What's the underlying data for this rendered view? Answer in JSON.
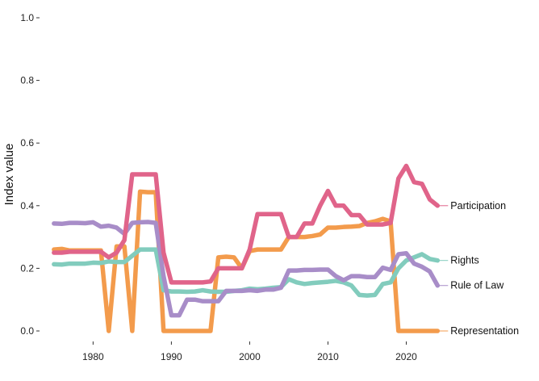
{
  "chart_data": {
    "type": "line",
    "title": "",
    "xlabel": "",
    "ylabel": "Index value",
    "xlim": [
      1974.5,
      2025
    ],
    "ylim": [
      0,
      1
    ],
    "yticks": [
      "0.0",
      "0.2",
      "0.4",
      "0.6",
      "0.8",
      "1.0"
    ],
    "xticks": [
      "1980",
      "1990",
      "2000",
      "2010",
      "2020"
    ],
    "grid": false,
    "legend": "direct-labels-right",
    "x": [
      1975,
      1976,
      1977,
      1978,
      1979,
      1980,
      1981,
      1982,
      1983,
      1984,
      1985,
      1986,
      1987,
      1988,
      1989,
      1990,
      1991,
      1992,
      1993,
      1994,
      1995,
      1996,
      1997,
      1998,
      1999,
      2000,
      2001,
      2002,
      2003,
      2004,
      2005,
      2006,
      2007,
      2008,
      2009,
      2010,
      2011,
      2012,
      2013,
      2014,
      2015,
      2016,
      2017,
      2018,
      2019,
      2020,
      2021,
      2022,
      2023,
      2024
    ],
    "series": [
      {
        "name": "Representation",
        "color": "#F39B4C",
        "values": [
          0.26,
          0.262,
          0.257,
          0.257,
          0.257,
          0.257,
          0.257,
          0.0,
          0.27,
          0.27,
          0.0,
          0.445,
          0.443,
          0.443,
          0.0,
          0.0,
          0.0,
          0.0,
          0.0,
          0.0,
          0.0,
          0.235,
          0.237,
          0.235,
          0.2,
          0.255,
          0.26,
          0.26,
          0.26,
          0.26,
          0.3,
          0.3,
          0.3,
          0.303,
          0.308,
          0.33,
          0.33,
          0.332,
          0.333,
          0.335,
          0.345,
          0.35,
          0.358,
          0.35,
          0.0,
          0.0,
          0.0,
          0.0,
          0.0,
          0.0
        ]
      },
      {
        "name": "Participation",
        "color": "#E0648A",
        "values": [
          0.25,
          0.25,
          0.253,
          0.253,
          0.253,
          0.253,
          0.253,
          0.235,
          0.25,
          0.29,
          0.5,
          0.5,
          0.5,
          0.5,
          0.25,
          0.155,
          0.155,
          0.155,
          0.155,
          0.155,
          0.158,
          0.2,
          0.2,
          0.2,
          0.2,
          0.26,
          0.373,
          0.373,
          0.373,
          0.373,
          0.3,
          0.3,
          0.343,
          0.343,
          0.4,
          0.447,
          0.4,
          0.4,
          0.37,
          0.37,
          0.34,
          0.34,
          0.34,
          0.345,
          0.487,
          0.527,
          0.475,
          0.47,
          0.42,
          0.4
        ]
      },
      {
        "name": "Rights",
        "color": "#82CCBD",
        "values": [
          0.213,
          0.212,
          0.215,
          0.215,
          0.215,
          0.218,
          0.217,
          0.222,
          0.22,
          0.22,
          0.24,
          0.26,
          0.26,
          0.26,
          0.13,
          0.126,
          0.126,
          0.125,
          0.126,
          0.13,
          0.126,
          0.125,
          0.125,
          0.128,
          0.13,
          0.135,
          0.133,
          0.135,
          0.138,
          0.14,
          0.165,
          0.155,
          0.15,
          0.153,
          0.155,
          0.157,
          0.16,
          0.155,
          0.145,
          0.115,
          0.113,
          0.115,
          0.15,
          0.155,
          0.2,
          0.225,
          0.235,
          0.245,
          0.23,
          0.225
        ]
      },
      {
        "name": "Rule of Law",
        "color": "#A88DC8",
        "values": [
          0.343,
          0.342,
          0.345,
          0.345,
          0.344,
          0.347,
          0.333,
          0.336,
          0.33,
          0.31,
          0.345,
          0.347,
          0.348,
          0.345,
          0.175,
          0.05,
          0.05,
          0.1,
          0.1,
          0.095,
          0.095,
          0.095,
          0.128,
          0.128,
          0.128,
          0.13,
          0.128,
          0.132,
          0.132,
          0.138,
          0.193,
          0.193,
          0.195,
          0.195,
          0.196,
          0.196,
          0.175,
          0.162,
          0.175,
          0.175,
          0.172,
          0.172,
          0.202,
          0.195,
          0.245,
          0.248,
          0.215,
          0.205,
          0.19,
          0.145
        ]
      }
    ]
  }
}
